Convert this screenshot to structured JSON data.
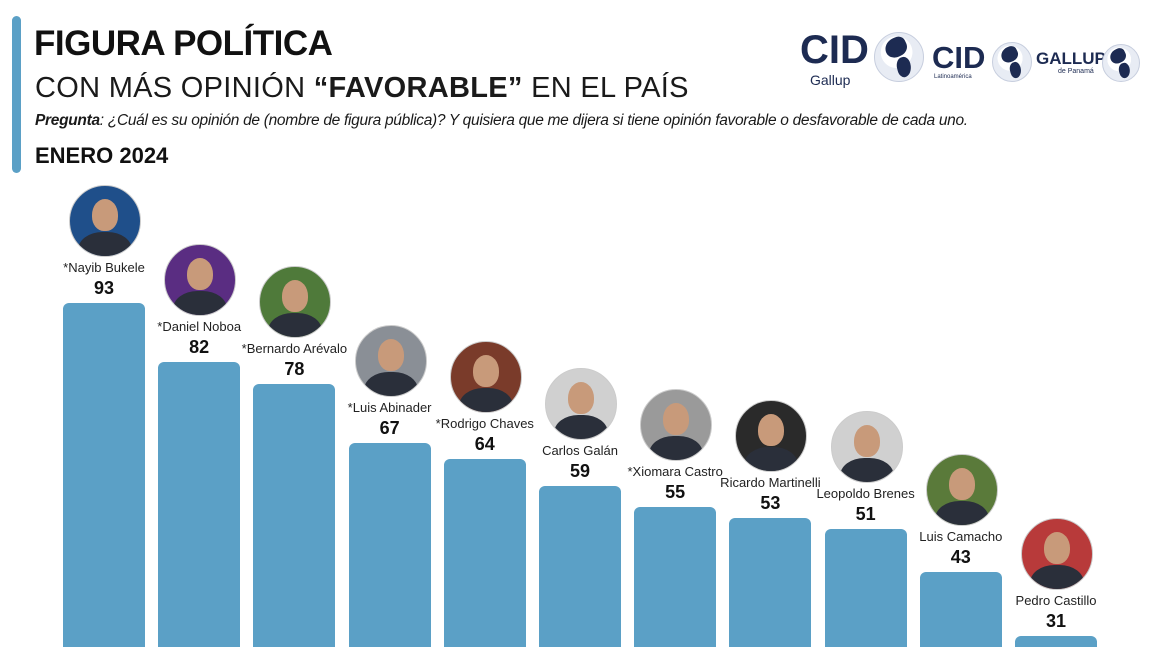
{
  "header": {
    "title": "FIGURA POLÍTICA",
    "subtitle_prefix": "CON MÁS OPINIÓN ",
    "subtitle_bold": "“FAVORABLE”",
    "subtitle_suffix": " EN  EL PAÍS",
    "question_label": "Pregunta",
    "question_text": ": ¿Cuál es su opinión de (nombre de figura pública)? Y quisiera que me dijera si tiene opinión favorable o desfavorable de cada uno.",
    "date": "ENERO 2024"
  },
  "logos": [
    {
      "word": "CID",
      "sub": "Gallup"
    },
    {
      "word": "CID",
      "sub": "Latinoamérica"
    },
    {
      "word": "GALLUP",
      "sub": "de Panamá"
    }
  ],
  "colors": {
    "bar": "#5ba0c6",
    "accent": "#5ba0c6",
    "logo": "#1d2b52"
  },
  "chart_data": {
    "type": "bar",
    "title": "FIGURA POLÍTICA CON MÁS OPINIÓN “FAVORABLE” EN EL PAÍS",
    "subtitle": "ENERO 2024",
    "xlabel": "",
    "ylabel": "",
    "categories": [
      "*Nayib Bukele",
      "*Daniel Noboa",
      "*Bernardo Arévalo",
      "*Luis Abinader",
      "*Rodrigo Chaves",
      "Carlos Galán",
      "*Xiomara Castro",
      "Ricardo Martinelli",
      "Leopoldo Brenes",
      "Luis Camacho",
      "Pedro Castillo"
    ],
    "values": [
      93,
      82,
      78,
      67,
      64,
      59,
      55,
      53,
      51,
      43,
      31
    ],
    "avatar_colors": [
      "#1f4f8a",
      "#5a2d82",
      "#4f7a3a",
      "#8a8f96",
      "#7a3b2a",
      "#d0d0d0",
      "#9a9a9a",
      "#2a2a2a",
      "#d0d0d0",
      "#5a7a3a",
      "#b83a3a"
    ],
    "grid": false,
    "legend": "none",
    "ylim": [
      0,
      100
    ]
  }
}
